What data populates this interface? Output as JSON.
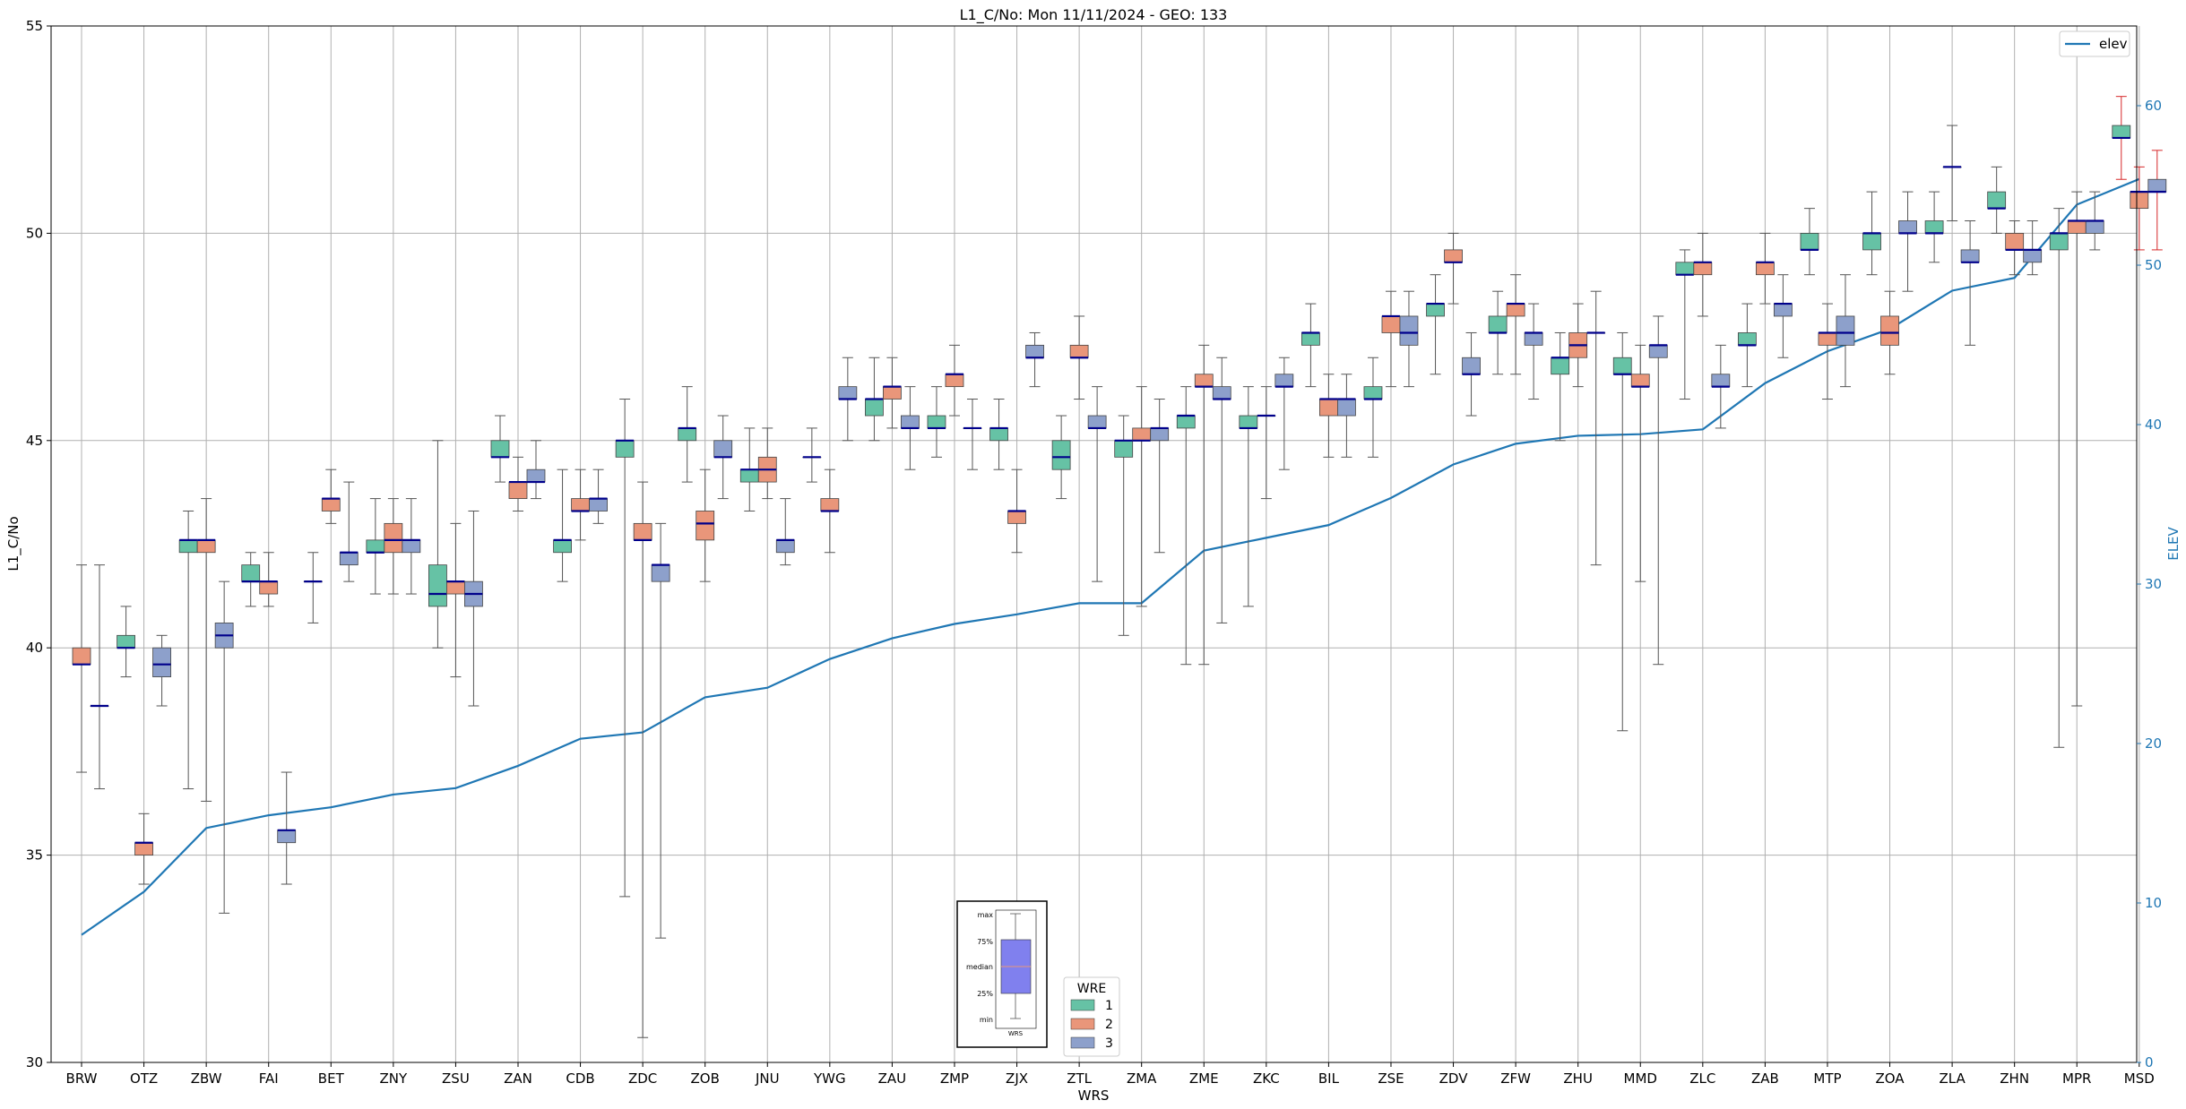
{
  "chart_data": {
    "type": "box",
    "title": "L1_C/No: Mon 11/11/2024 - GEO: 133",
    "xlabel": "WRS",
    "ylabel": "L1_C/No",
    "y2label": "ELEV",
    "ylim": [
      30,
      55
    ],
    "y2lim": [
      0,
      65
    ],
    "yticks": [
      30,
      35,
      40,
      45,
      50,
      55
    ],
    "y2ticks": [
      0,
      10,
      20,
      30,
      40,
      50,
      60
    ],
    "grid": true,
    "legend": {
      "position": "top-right",
      "entries": [
        "elev"
      ]
    },
    "wre_legend": {
      "title": "WRE",
      "position": "bottom-center",
      "entries": [
        "1",
        "2",
        "3"
      ]
    },
    "colors": {
      "1": "#66c2a5",
      "2": "#e9967a",
      "3": "#8da0cb",
      "median": "#00008b",
      "elev": "#1f77b4",
      "whisker": "#555555",
      "red_whisker": "#d62728",
      "axis2": "#1f77b4"
    },
    "categories": [
      "BRW",
      "OTZ",
      "ZBW",
      "FAI",
      "BET",
      "ZNY",
      "ZSU",
      "ZAN",
      "CDB",
      "ZDC",
      "ZOB",
      "JNU",
      "YWG",
      "ZAU",
      "ZMP",
      "ZJX",
      "ZTL",
      "ZMA",
      "ZME",
      "ZKC",
      "BIL",
      "ZSE",
      "ZDV",
      "ZFW",
      "ZHU",
      "MMD",
      "ZLC",
      "ZAB",
      "MTP",
      "ZOA",
      "ZLA",
      "ZHN",
      "MPR",
      "MSD"
    ],
    "elev": [
      8,
      10.7,
      14.7,
      15.5,
      16,
      16.8,
      17.2,
      18.6,
      20.3,
      20.7,
      22.9,
      23.5,
      25.3,
      26.6,
      27.5,
      28.1,
      28.8,
      28.8,
      32.1,
      32.9,
      33.7,
      35.4,
      37.5,
      38.8,
      39.3,
      39.4,
      39.7,
      42.6,
      44.6,
      46,
      48.4,
      49.2,
      53.8,
      55.4
    ],
    "boxes": [
      {
        "station": "BRW",
        "wre": "2",
        "min": 37,
        "q1": 39.6,
        "median": 39.6,
        "q3": 40,
        "max": 42
      },
      {
        "station": "BRW",
        "wre": "3",
        "min": 36.6,
        "q1": 38.6,
        "median": 38.6,
        "q3": 38.6,
        "max": 42
      },
      {
        "station": "OTZ",
        "wre": "1",
        "min": 39.3,
        "q1": 40,
        "median": 40,
        "q3": 40.3,
        "max": 41
      },
      {
        "station": "OTZ",
        "wre": "2",
        "min": 34.3,
        "q1": 35,
        "median": 35.3,
        "q3": 35.3,
        "max": 36
      },
      {
        "station": "OTZ",
        "wre": "3",
        "min": 38.6,
        "q1": 39.3,
        "median": 39.6,
        "q3": 40,
        "max": 40.3
      },
      {
        "station": "ZBW",
        "wre": "1",
        "min": 36.6,
        "q1": 42.3,
        "median": 42.6,
        "q3": 42.6,
        "max": 43.3
      },
      {
        "station": "ZBW",
        "wre": "2",
        "min": 36.3,
        "q1": 42.3,
        "median": 42.6,
        "q3": 42.6,
        "max": 43.6
      },
      {
        "station": "ZBW",
        "wre": "3",
        "min": 33.6,
        "q1": 40,
        "median": 40.3,
        "q3": 40.6,
        "max": 41.6
      },
      {
        "station": "FAI",
        "wre": "1",
        "min": 41,
        "q1": 41.6,
        "median": 41.6,
        "q3": 42,
        "max": 42.3
      },
      {
        "station": "FAI",
        "wre": "2",
        "min": 41,
        "q1": 41.3,
        "median": 41.6,
        "q3": 41.6,
        "max": 42.3
      },
      {
        "station": "FAI",
        "wre": "3",
        "min": 34.3,
        "q1": 35.3,
        "median": 35.6,
        "q3": 35.6,
        "max": 37
      },
      {
        "station": "BET",
        "wre": "1",
        "min": 40.6,
        "q1": 41.6,
        "median": 41.6,
        "q3": 41.6,
        "max": 42.3
      },
      {
        "station": "BET",
        "wre": "2",
        "min": 43,
        "q1": 43.3,
        "median": 43.6,
        "q3": 43.6,
        "max": 44.3
      },
      {
        "station": "BET",
        "wre": "3",
        "min": 41.6,
        "q1": 42,
        "median": 42.3,
        "q3": 42.3,
        "max": 44
      },
      {
        "station": "ZNY",
        "wre": "1",
        "min": 41.3,
        "q1": 42.3,
        "median": 42.3,
        "q3": 42.6,
        "max": 43.6
      },
      {
        "station": "ZNY",
        "wre": "2",
        "min": 41.3,
        "q1": 42.3,
        "median": 42.6,
        "q3": 43,
        "max": 43.6
      },
      {
        "station": "ZNY",
        "wre": "3",
        "min": 41.3,
        "q1": 42.3,
        "median": 42.6,
        "q3": 42.6,
        "max": 43.6
      },
      {
        "station": "ZSU",
        "wre": "1",
        "min": 40,
        "q1": 41,
        "median": 41.3,
        "q3": 42,
        "max": 45
      },
      {
        "station": "ZSU",
        "wre": "2",
        "min": 39.3,
        "q1": 41.3,
        "median": 41.6,
        "q3": 41.6,
        "max": 43
      },
      {
        "station": "ZSU",
        "wre": "3",
        "min": 38.6,
        "q1": 41,
        "median": 41.3,
        "q3": 41.6,
        "max": 43.3
      },
      {
        "station": "ZAN",
        "wre": "1",
        "min": 44,
        "q1": 44.6,
        "median": 44.6,
        "q3": 45,
        "max": 45.6
      },
      {
        "station": "ZAN",
        "wre": "2",
        "min": 43.3,
        "q1": 43.6,
        "median": 44,
        "q3": 44,
        "max": 44.6
      },
      {
        "station": "ZAN",
        "wre": "3",
        "min": 43.6,
        "q1": 44,
        "median": 44,
        "q3": 44.3,
        "max": 45
      },
      {
        "station": "CDB",
        "wre": "1",
        "min": 41.6,
        "q1": 42.3,
        "median": 42.6,
        "q3": 42.6,
        "max": 44.3
      },
      {
        "station": "CDB",
        "wre": "2",
        "min": 42.6,
        "q1": 43.3,
        "median": 43.3,
        "q3": 43.6,
        "max": 44.3
      },
      {
        "station": "CDB",
        "wre": "3",
        "min": 43,
        "q1": 43.3,
        "median": 43.6,
        "q3": 43.6,
        "max": 44.3
      },
      {
        "station": "ZDC",
        "wre": "1",
        "min": 34,
        "q1": 44.6,
        "median": 45,
        "q3": 45,
        "max": 46
      },
      {
        "station": "ZDC",
        "wre": "2",
        "min": 30.6,
        "q1": 42.6,
        "median": 42.6,
        "q3": 43,
        "max": 44
      },
      {
        "station": "ZDC",
        "wre": "3",
        "min": 33,
        "q1": 41.6,
        "median": 42,
        "q3": 42,
        "max": 43
      },
      {
        "station": "ZOB",
        "wre": "1",
        "min": 44,
        "q1": 45,
        "median": 45.3,
        "q3": 45.3,
        "max": 46.3
      },
      {
        "station": "ZOB",
        "wre": "2",
        "min": 41.6,
        "q1": 42.6,
        "median": 43,
        "q3": 43.3,
        "max": 44.3
      },
      {
        "station": "ZOB",
        "wre": "3",
        "min": 43.6,
        "q1": 44.6,
        "median": 44.6,
        "q3": 45,
        "max": 45.6
      },
      {
        "station": "JNU",
        "wre": "1",
        "min": 43.3,
        "q1": 44,
        "median": 44.3,
        "q3": 44.3,
        "max": 45.3
      },
      {
        "station": "JNU",
        "wre": "2",
        "min": 43.6,
        "q1": 44,
        "median": 44.3,
        "q3": 44.6,
        "max": 45.3
      },
      {
        "station": "JNU",
        "wre": "3",
        "min": 42,
        "q1": 42.3,
        "median": 42.6,
        "q3": 42.6,
        "max": 43.6
      },
      {
        "station": "YWG",
        "wre": "1",
        "min": 44,
        "q1": 44.6,
        "median": 44.6,
        "q3": 44.6,
        "max": 45.3
      },
      {
        "station": "YWG",
        "wre": "2",
        "min": 42.3,
        "q1": 43.3,
        "median": 43.3,
        "q3": 43.6,
        "max": 44.3
      },
      {
        "station": "YWG",
        "wre": "3",
        "min": 45,
        "q1": 46,
        "median": 46,
        "q3": 46.3,
        "max": 47
      },
      {
        "station": "ZAU",
        "wre": "1",
        "min": 45,
        "q1": 45.6,
        "median": 46,
        "q3": 46,
        "max": 47
      },
      {
        "station": "ZAU",
        "wre": "2",
        "min": 45.3,
        "q1": 46,
        "median": 46.3,
        "q3": 46.3,
        "max": 47
      },
      {
        "station": "ZAU",
        "wre": "3",
        "min": 44.3,
        "q1": 45.3,
        "median": 45.3,
        "q3": 45.6,
        "max": 46.3
      },
      {
        "station": "ZMP",
        "wre": "1",
        "min": 44.6,
        "q1": 45.3,
        "median": 45.3,
        "q3": 45.6,
        "max": 46.3
      },
      {
        "station": "ZMP",
        "wre": "2",
        "min": 45.6,
        "q1": 46.3,
        "median": 46.6,
        "q3": 46.6,
        "max": 47.3
      },
      {
        "station": "ZMP",
        "wre": "3",
        "min": 44.3,
        "q1": 45.3,
        "median": 45.3,
        "q3": 45.3,
        "max": 46
      },
      {
        "station": "ZJX",
        "wre": "1",
        "min": 44.3,
        "q1": 45,
        "median": 45.3,
        "q3": 45.3,
        "max": 46
      },
      {
        "station": "ZJX",
        "wre": "2",
        "min": 42.3,
        "q1": 43,
        "median": 43.3,
        "q3": 43.3,
        "max": 44.3
      },
      {
        "station": "ZJX",
        "wre": "3",
        "min": 46.3,
        "q1": 47,
        "median": 47,
        "q3": 47.3,
        "max": 47.6
      },
      {
        "station": "ZTL",
        "wre": "1",
        "min": 43.6,
        "q1": 44.3,
        "median": 44.6,
        "q3": 45,
        "max": 45.6
      },
      {
        "station": "ZTL",
        "wre": "2",
        "min": 46,
        "q1": 47,
        "median": 47,
        "q3": 47.3,
        "max": 48
      },
      {
        "station": "ZTL",
        "wre": "3",
        "min": 41.6,
        "q1": 45.3,
        "median": 45.3,
        "q3": 45.6,
        "max": 46.3
      },
      {
        "station": "ZMA",
        "wre": "1",
        "min": 40.3,
        "q1": 44.6,
        "median": 45,
        "q3": 45,
        "max": 45.6
      },
      {
        "station": "ZMA",
        "wre": "2",
        "min": 41,
        "q1": 45,
        "median": 45,
        "q3": 45.3,
        "max": 46.3
      },
      {
        "station": "ZMA",
        "wre": "3",
        "min": 42.3,
        "q1": 45,
        "median": 45.3,
        "q3": 45.3,
        "max": 46
      },
      {
        "station": "ZME",
        "wre": "1",
        "min": 39.6,
        "q1": 45.3,
        "median": 45.6,
        "q3": 45.6,
        "max": 46.3
      },
      {
        "station": "ZME",
        "wre": "2",
        "min": 39.6,
        "q1": 46.3,
        "median": 46.3,
        "q3": 46.6,
        "max": 47.3
      },
      {
        "station": "ZME",
        "wre": "3",
        "min": 40.6,
        "q1": 46,
        "median": 46,
        "q3": 46.3,
        "max": 47
      },
      {
        "station": "ZKC",
        "wre": "1",
        "min": 41,
        "q1": 45.3,
        "median": 45.3,
        "q3": 45.6,
        "max": 46.3
      },
      {
        "station": "ZKC",
        "wre": "2",
        "min": 43.6,
        "q1": 45.6,
        "median": 45.6,
        "q3": 45.6,
        "max": 46.3
      },
      {
        "station": "ZKC",
        "wre": "3",
        "min": 44.3,
        "q1": 46.3,
        "median": 46.3,
        "q3": 46.6,
        "max": 47
      },
      {
        "station": "BIL",
        "wre": "1",
        "min": 46.3,
        "q1": 47.3,
        "median": 47.6,
        "q3": 47.6,
        "max": 48.3
      },
      {
        "station": "BIL",
        "wre": "2",
        "min": 44.6,
        "q1": 45.6,
        "median": 46,
        "q3": 46,
        "max": 46.6
      },
      {
        "station": "BIL",
        "wre": "3",
        "min": 44.6,
        "q1": 45.6,
        "median": 46,
        "q3": 46,
        "max": 46.6
      },
      {
        "station": "ZSE",
        "wre": "1",
        "min": 44.6,
        "q1": 46,
        "median": 46,
        "q3": 46.3,
        "max": 47
      },
      {
        "station": "ZSE",
        "wre": "2",
        "min": 46.3,
        "q1": 47.6,
        "median": 48,
        "q3": 48,
        "max": 48.6
      },
      {
        "station": "ZSE",
        "wre": "3",
        "min": 46.3,
        "q1": 47.3,
        "median": 47.6,
        "q3": 48,
        "max": 48.6
      },
      {
        "station": "ZDV",
        "wre": "1",
        "min": 46.6,
        "q1": 48,
        "median": 48.3,
        "q3": 48.3,
        "max": 49
      },
      {
        "station": "ZDV",
        "wre": "2",
        "min": 48.3,
        "q1": 49.3,
        "median": 49.3,
        "q3": 49.6,
        "max": 50
      },
      {
        "station": "ZDV",
        "wre": "3",
        "min": 45.6,
        "q1": 46.6,
        "median": 46.6,
        "q3": 47,
        "max": 47.6
      },
      {
        "station": "ZFW",
        "wre": "1",
        "min": 46.6,
        "q1": 47.6,
        "median": 47.6,
        "q3": 48,
        "max": 48.6
      },
      {
        "station": "ZFW",
        "wre": "2",
        "min": 46.6,
        "q1": 48,
        "median": 48.3,
        "q3": 48.3,
        "max": 49
      },
      {
        "station": "ZFW",
        "wre": "3",
        "min": 46,
        "q1": 47.3,
        "median": 47.6,
        "q3": 47.6,
        "max": 48.3
      },
      {
        "station": "ZHU",
        "wre": "1",
        "min": 45,
        "q1": 46.6,
        "median": 47,
        "q3": 47,
        "max": 47.6
      },
      {
        "station": "ZHU",
        "wre": "2",
        "min": 46.3,
        "q1": 47,
        "median": 47.3,
        "q3": 47.6,
        "max": 48.3
      },
      {
        "station": "ZHU",
        "wre": "3",
        "min": 42,
        "q1": 47.6,
        "median": 47.6,
        "q3": 47.6,
        "max": 48.6
      },
      {
        "station": "MMD",
        "wre": "1",
        "min": 38,
        "q1": 46.6,
        "median": 46.6,
        "q3": 47,
        "max": 47.6
      },
      {
        "station": "MMD",
        "wre": "2",
        "min": 41.6,
        "q1": 46.3,
        "median": 46.3,
        "q3": 46.6,
        "max": 47.3
      },
      {
        "station": "MMD",
        "wre": "3",
        "min": 39.6,
        "q1": 47,
        "median": 47.3,
        "q3": 47.3,
        "max": 48
      },
      {
        "station": "ZLC",
        "wre": "1",
        "min": 46,
        "q1": 49,
        "median": 49,
        "q3": 49.3,
        "max": 49.6
      },
      {
        "station": "ZLC",
        "wre": "2",
        "min": 48,
        "q1": 49,
        "median": 49.3,
        "q3": 49.3,
        "max": 50
      },
      {
        "station": "ZLC",
        "wre": "3",
        "min": 45.3,
        "q1": 46.3,
        "median": 46.3,
        "q3": 46.6,
        "max": 47.3
      },
      {
        "station": "ZAB",
        "wre": "1",
        "min": 46.3,
        "q1": 47.3,
        "median": 47.3,
        "q3": 47.6,
        "max": 48.3
      },
      {
        "station": "ZAB",
        "wre": "2",
        "min": 48.3,
        "q1": 49,
        "median": 49.3,
        "q3": 49.3,
        "max": 50
      },
      {
        "station": "ZAB",
        "wre": "3",
        "min": 47,
        "q1": 48,
        "median": 48.3,
        "q3": 48.3,
        "max": 49
      },
      {
        "station": "MTP",
        "wre": "1",
        "min": 49,
        "q1": 49.6,
        "median": 49.6,
        "q3": 50,
        "max": 50.6
      },
      {
        "station": "MTP",
        "wre": "2",
        "min": 46,
        "q1": 47.3,
        "median": 47.6,
        "q3": 47.6,
        "max": 48.3
      },
      {
        "station": "MTP",
        "wre": "3",
        "min": 46.3,
        "q1": 47.3,
        "median": 47.6,
        "q3": 48,
        "max": 49
      },
      {
        "station": "ZOA",
        "wre": "1",
        "min": 49,
        "q1": 49.6,
        "median": 50,
        "q3": 50,
        "max": 51
      },
      {
        "station": "ZOA",
        "wre": "2",
        "min": 46.6,
        "q1": 47.3,
        "median": 47.6,
        "q3": 48,
        "max": 48.6
      },
      {
        "station": "ZOA",
        "wre": "3",
        "min": 48.6,
        "q1": 50,
        "median": 50,
        "q3": 50.3,
        "max": 51
      },
      {
        "station": "ZLA",
        "wre": "1",
        "min": 49.3,
        "q1": 50,
        "median": 50,
        "q3": 50.3,
        "max": 51
      },
      {
        "station": "ZLA",
        "wre": "2",
        "min": 50.3,
        "q1": 51.6,
        "median": 51.6,
        "q3": 51.6,
        "max": 52.6
      },
      {
        "station": "ZLA",
        "wre": "3",
        "min": 47.3,
        "q1": 49.3,
        "median": 49.3,
        "q3": 49.6,
        "max": 50.3
      },
      {
        "station": "ZHN",
        "wre": "1",
        "min": 50,
        "q1": 50.6,
        "median": 50.6,
        "q3": 51,
        "max": 51.6
      },
      {
        "station": "ZHN",
        "wre": "2",
        "min": 49,
        "q1": 49.6,
        "median": 49.6,
        "q3": 50,
        "max": 50.3
      },
      {
        "station": "ZHN",
        "wre": "3",
        "min": 49,
        "q1": 49.3,
        "median": 49.6,
        "q3": 49.6,
        "max": 50.3
      },
      {
        "station": "MPR",
        "wre": "1",
        "min": 37.6,
        "q1": 49.6,
        "median": 50,
        "q3": 50,
        "max": 50.6
      },
      {
        "station": "MPR",
        "wre": "2",
        "min": 38.6,
        "q1": 50,
        "median": 50.3,
        "q3": 50.3,
        "max": 51
      },
      {
        "station": "MPR",
        "wre": "3",
        "min": 49.6,
        "q1": 50,
        "median": 50.3,
        "q3": 50.3,
        "max": 51
      },
      {
        "station": "MSD",
        "wre": "1",
        "min": 51.3,
        "q1": 52.3,
        "median": 52.3,
        "q3": 52.6,
        "max": 53.3,
        "red": true
      },
      {
        "station": "MSD",
        "wre": "2",
        "min": 49.6,
        "q1": 50.6,
        "median": 51,
        "q3": 51,
        "max": 51.6,
        "red": true
      },
      {
        "station": "MSD",
        "wre": "3",
        "min": 49.6,
        "q1": 51,
        "median": 51,
        "q3": 51.3,
        "max": 52,
        "red": true
      }
    ]
  },
  "inset_key": {
    "labels": [
      "max",
      "75%",
      "median",
      "25%",
      "min"
    ],
    "xlabel": "WRS"
  }
}
